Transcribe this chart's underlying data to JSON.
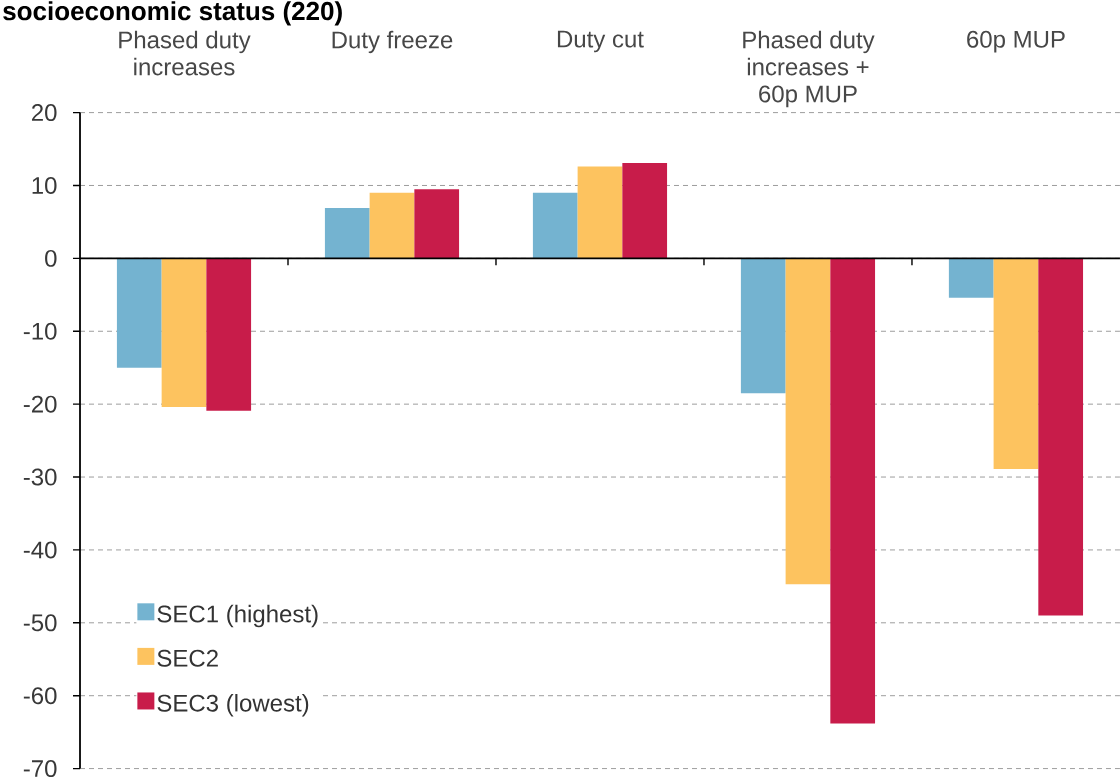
{
  "chart_data": {
    "type": "bar",
    "title": "socioeconomic status (220)",
    "categories": [
      "Phased duty increases",
      "Duty freeze",
      "Duty cut",
      "Phased duty increases + 60p MUP",
      "60p MUP"
    ],
    "series": [
      {
        "name": "SEC1 (highest)",
        "color": "#74b3d0",
        "values": [
          -15.0,
          6.9,
          9.0,
          -18.5,
          -5.4
        ]
      },
      {
        "name": "SEC2",
        "color": "#fdc35f",
        "values": [
          -20.4,
          9.0,
          12.6,
          -44.7,
          -28.9
        ]
      },
      {
        "name": "SEC3 (lowest)",
        "color": "#c81c4a",
        "values": [
          -20.9,
          9.5,
          13.1,
          -63.8,
          -49.0
        ]
      }
    ],
    "ylim": [
      -70,
      20
    ],
    "yticks": [
      -70,
      -60,
      -50,
      -40,
      -30,
      -20,
      -10,
      0,
      10,
      20
    ],
    "grid": "y",
    "legend": "bottom left"
  }
}
